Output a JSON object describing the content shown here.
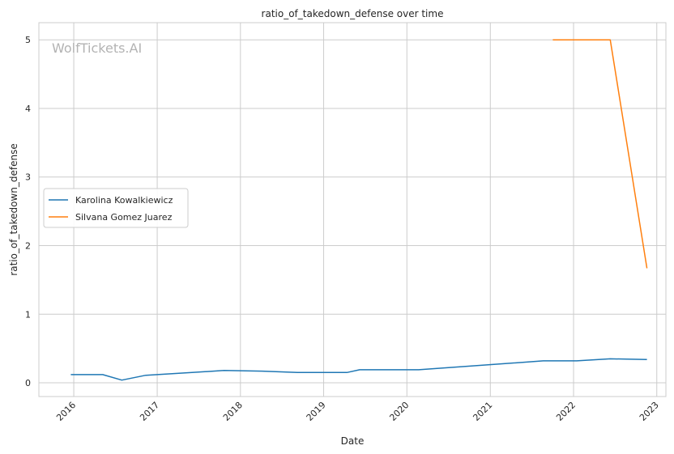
{
  "chart_data": {
    "type": "line",
    "title": "ratio_of_takedown_defense over time",
    "xlabel": "Date",
    "ylabel": "ratio_of_takedown_defense",
    "watermark": "WolfTickets.AI",
    "x_ticks": [
      "2016",
      "2017",
      "2018",
      "2019",
      "2020",
      "2021",
      "2022",
      "2023"
    ],
    "y_ticks": [
      0,
      1,
      2,
      3,
      4,
      5
    ],
    "xlim": [
      "2015-08-01",
      "2023-02-10"
    ],
    "ylim": [
      -0.2,
      5.25
    ],
    "grid": true,
    "legend_position": "center-left",
    "series": [
      {
        "name": "Karolina Kowalkiewicz",
        "color": "#1f77b4",
        "points": [
          [
            "2015-12-19",
            0.12
          ],
          [
            "2016-05-07",
            0.12
          ],
          [
            "2016-07-30",
            0.04
          ],
          [
            "2016-11-12",
            0.11
          ],
          [
            "2017-06-03",
            0.15
          ],
          [
            "2017-10-21",
            0.18
          ],
          [
            "2018-04-07",
            0.17
          ],
          [
            "2018-09-08",
            0.15
          ],
          [
            "2019-04-13",
            0.15
          ],
          [
            "2019-06-08",
            0.19
          ],
          [
            "2020-02-22",
            0.19
          ],
          [
            "2021-08-21",
            0.32
          ],
          [
            "2022-01-15",
            0.32
          ],
          [
            "2022-06-11",
            0.35
          ],
          [
            "2022-11-19",
            0.34
          ]
        ]
      },
      {
        "name": "Silvana Gomez Juarez",
        "color": "#ff7f0e",
        "points": [
          [
            "2021-10-02",
            5.0
          ],
          [
            "2022-06-11",
            5.0
          ],
          [
            "2022-11-19",
            1.67
          ]
        ]
      }
    ]
  }
}
